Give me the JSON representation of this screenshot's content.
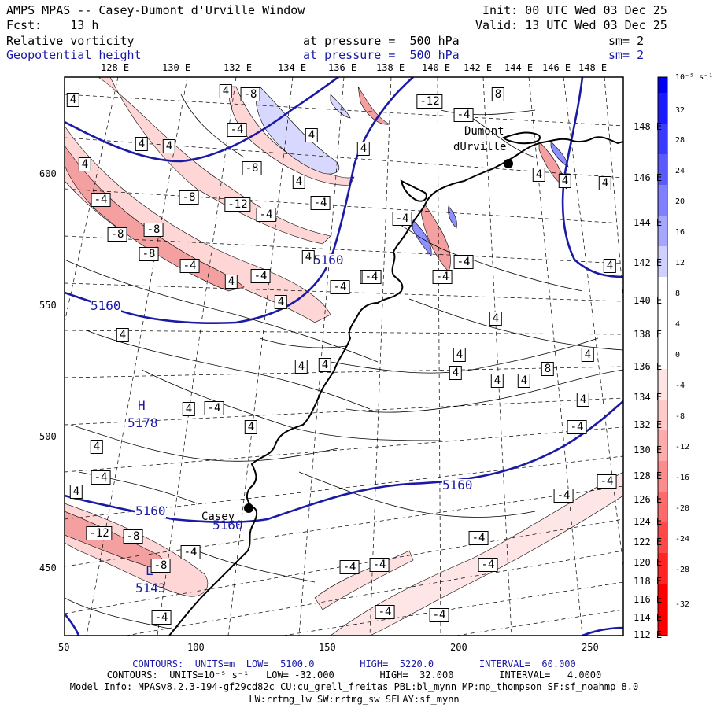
{
  "header": {
    "title": "AMPS MPAS -- Casey-Dumont d'Urville Window",
    "init": "Init: 00 UTC Wed 03 Dec 25",
    "fcst": "Fcst:    13 h",
    "valid": "Valid: 13 UTC Wed 03 Dec 25",
    "field1": "Relative vorticity",
    "field1_level": "at pressure =  500 hPa",
    "field1_sm": "sm= 2",
    "field2": "Geopotential height",
    "field2_level": "at pressure =  500 hPa",
    "field2_sm": "sm= 2"
  },
  "colors": {
    "height_contour": "#1a1aa6",
    "positive": "#0000ff",
    "negative": "#ff0000"
  },
  "axes": {
    "top_lon": [
      "128 E",
      "130 E",
      "132 E",
      "134 E",
      "136 E",
      "138 E",
      "140 E",
      "142 E",
      "144 E",
      "146 E",
      "148 E"
    ],
    "right_lon": [
      "148 E",
      "146 E",
      "144 E",
      "142 E",
      "140 E",
      "138 E",
      "136 E",
      "134 E",
      "132 E",
      "130 E",
      "128 E",
      "126 E",
      "124 E",
      "122 E",
      "120 E",
      "118 E",
      "116 E",
      "114 E",
      "112 E"
    ],
    "left": [
      "600",
      "550",
      "500",
      "450"
    ],
    "bottom": [
      "50",
      "100",
      "150",
      "200",
      "250"
    ]
  },
  "colorbar": {
    "unit": "10⁻⁵ s⁻¹",
    "ticks": [
      "32",
      "28",
      "24",
      "20",
      "16",
      "12",
      "8",
      "4",
      "0",
      "-4",
      "-8",
      "-12",
      "-16",
      "-20",
      "-24",
      "-28",
      "-32"
    ]
  },
  "map_labels": {
    "height_labels": [
      "5160",
      "5160",
      "5160",
      "5160",
      "5160"
    ],
    "high_letter": "H",
    "high_value": "5178",
    "low_letter": "L",
    "low_value": "5143",
    "dumont1": "Dumont",
    "dumont2": "dUrville",
    "casey": "Casey",
    "vort_boxes": [
      "4",
      "-8",
      "4",
      "4",
      "8",
      "4",
      "4",
      "4",
      "-4",
      "-8",
      "-8",
      "-12",
      "-4",
      "-4",
      "-4",
      "4",
      "4",
      "-12",
      "-4",
      "-8",
      "-8",
      "-8",
      "-4",
      "4",
      "-4",
      "-4",
      "4",
      "-4",
      "4",
      "-4",
      "-4",
      "-4",
      "4",
      "-4",
      "4",
      "4",
      "8",
      "4",
      "4",
      "4",
      "4",
      "4",
      "4",
      "4",
      "4",
      "4",
      "-4",
      "4",
      "-4",
      "-4",
      "-12",
      "-8",
      "-4",
      "-8",
      "-4",
      "-4",
      "-4",
      "-4",
      "-4",
      "-4",
      "-4",
      "-4",
      "-4",
      "4",
      "4",
      "4",
      "4",
      "4"
    ]
  },
  "footer": {
    "line1": "CONTOURS:  UNITS=m  LOW=  5100.0        HIGH=  5220.0        INTERVAL=  60.000",
    "line2": "CONTOURS:  UNITS=10⁻⁵ s⁻¹   LOW= -32.000        HIGH=  32.000        INTERVAL=   4.0000",
    "line3": "Model Info: MPASv8.2.3-194-gf29cd82c CU:cu_grell_freitas PBL:bl_mynn MP:mp_thompson SF:sf_noahmp 8.0",
    "line4": "LW:rrtmg_lw SW:rrtmg_sw SFLAY:sf_mynn"
  }
}
